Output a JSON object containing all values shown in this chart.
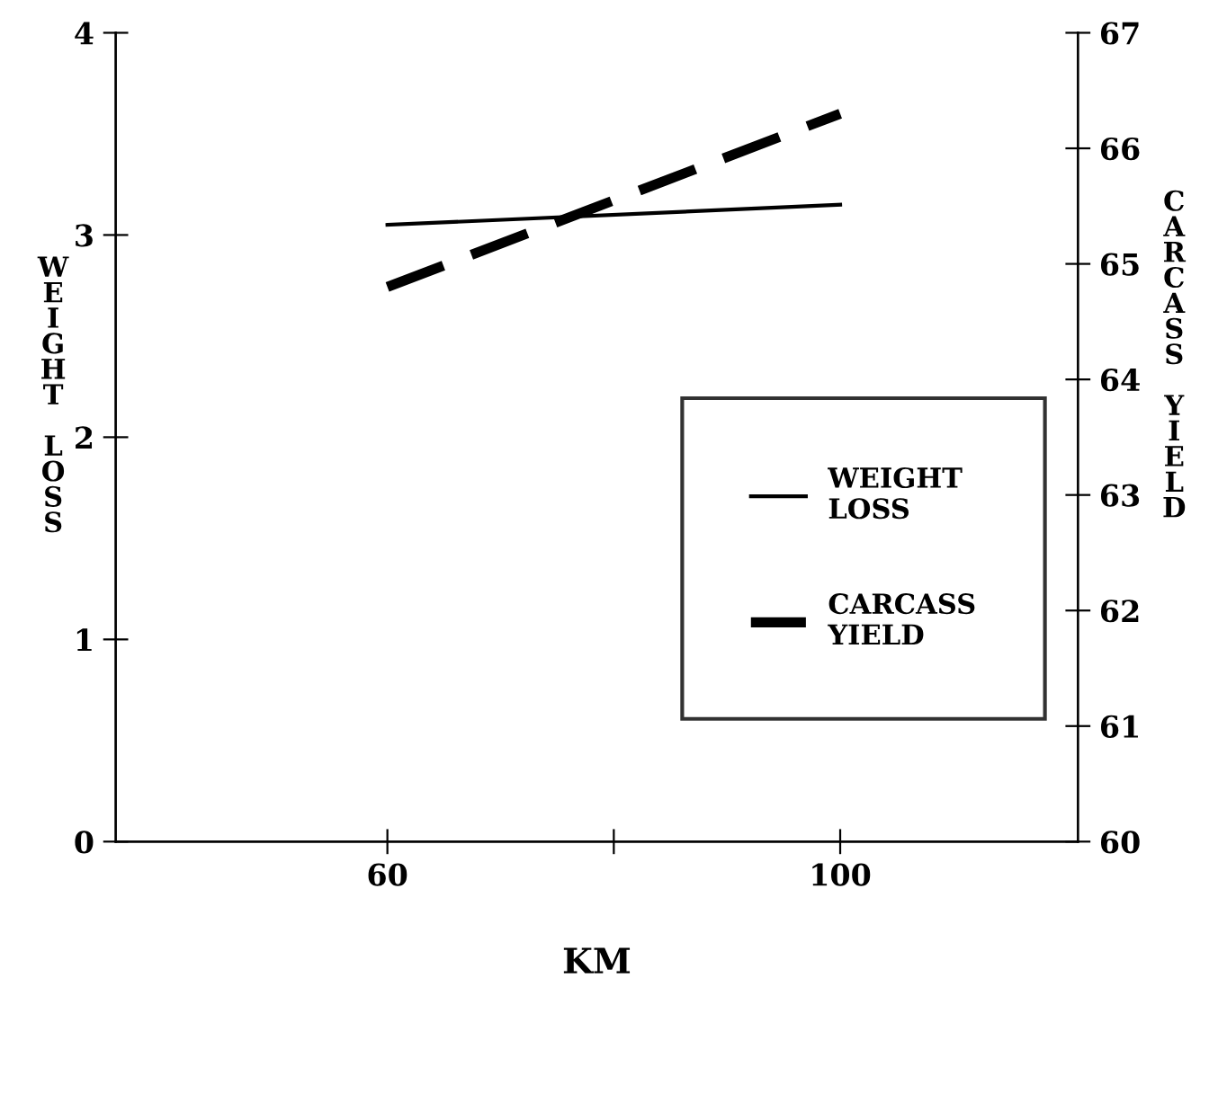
{
  "chart_data": {
    "type": "line",
    "xlabel": "KM",
    "ylabel": "WEIGHT LOSS",
    "y2label": "CARCASS YIELD",
    "x": [
      60,
      100
    ],
    "series": [
      {
        "name": "WEIGHT LOSS",
        "color": "#000000",
        "values": [
          3.05,
          3.15
        ],
        "line_style": "solid"
      },
      {
        "name": "CARCASS YIELD",
        "color": "#000000",
        "values": [
          64.8,
          66.3
        ],
        "line_style": "dashed",
        "axis": "y2"
      }
    ],
    "xlim": [
      36,
      121
    ],
    "xticks": [
      60,
      {
        "value": 80,
        "label": null
      },
      100
    ],
    "ylim": [
      0,
      4
    ],
    "yticks": [
      0,
      1,
      2,
      3,
      4
    ],
    "y2lim": [
      60,
      67
    ],
    "y2ticks": [
      60,
      61,
      62,
      63,
      64,
      65,
      66,
      67
    ],
    "legend": "right",
    "grid": false
  }
}
